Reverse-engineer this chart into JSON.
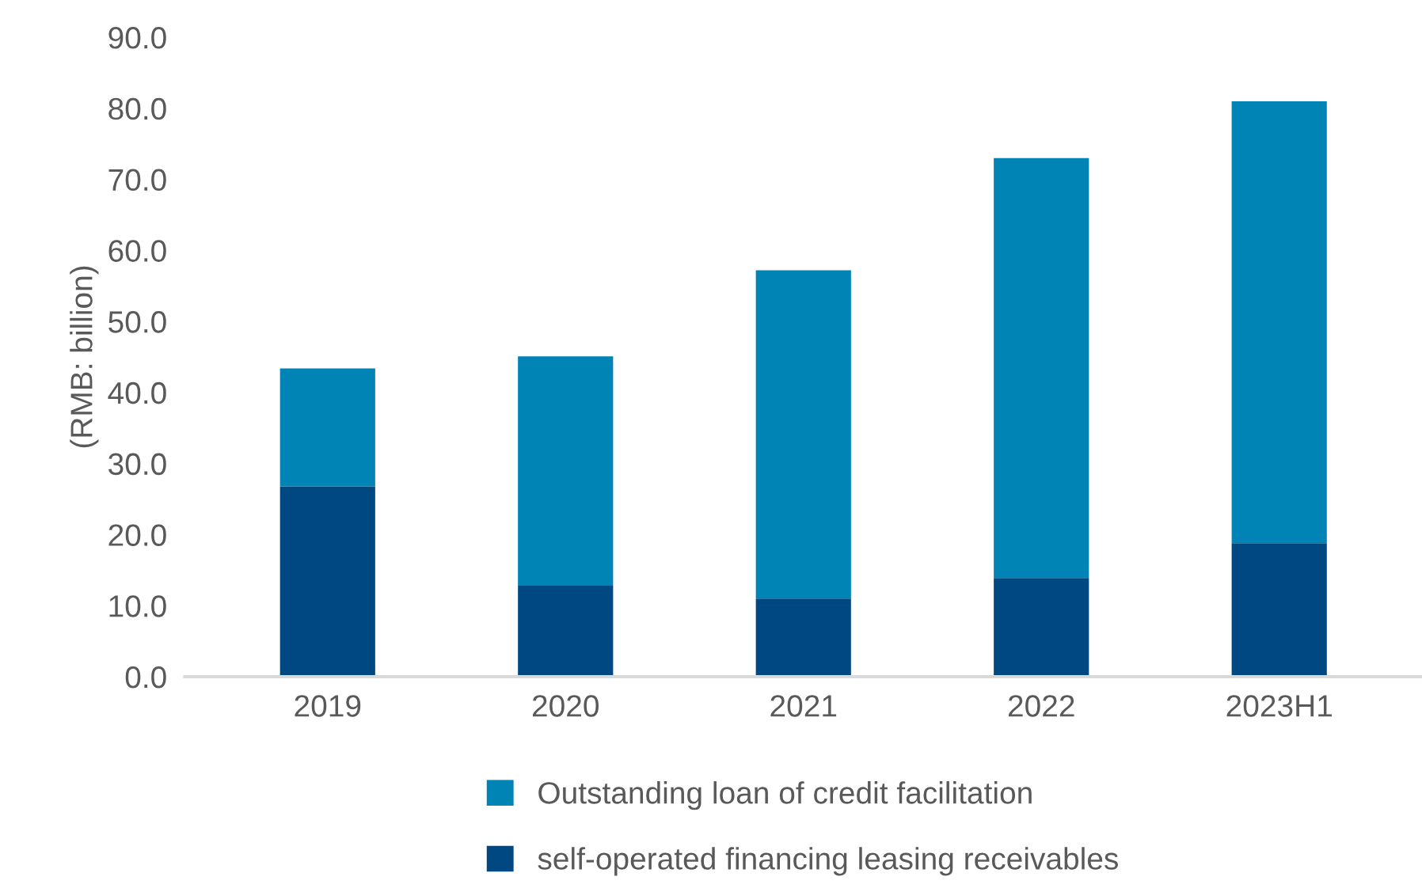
{
  "chart_data": {
    "type": "bar",
    "stacked": true,
    "ylabel": "(RMB: billion)",
    "categories": [
      "2019",
      "2020",
      "2021",
      "2022",
      "2023H1"
    ],
    "series": [
      {
        "name": "self-operated financing leasing receivables",
        "color": "#004882",
        "values": [
          26.8,
          12.8,
          11.0,
          13.9,
          18.8
        ]
      },
      {
        "name": "Outstanding loan of credit facilitation",
        "color": "#0084b6",
        "values": [
          16.6,
          32.3,
          46.2,
          59.1,
          62.2
        ]
      }
    ],
    "ylim": [
      0,
      90
    ],
    "yticks": [
      {
        "value": 0,
        "label": "0.0"
      },
      {
        "value": 10,
        "label": "10.0"
      },
      {
        "value": 20,
        "label": "20.0"
      },
      {
        "value": 30,
        "label": "30.0"
      },
      {
        "value": 40,
        "label": "40.0"
      },
      {
        "value": 50,
        "label": "50.0"
      },
      {
        "value": 60,
        "label": "60.0"
      },
      {
        "value": 70,
        "label": "70.0"
      },
      {
        "value": 80,
        "label": "80.0"
      },
      {
        "value": 90,
        "label": "90.0"
      }
    ],
    "grid": false,
    "legend": "bottom"
  }
}
